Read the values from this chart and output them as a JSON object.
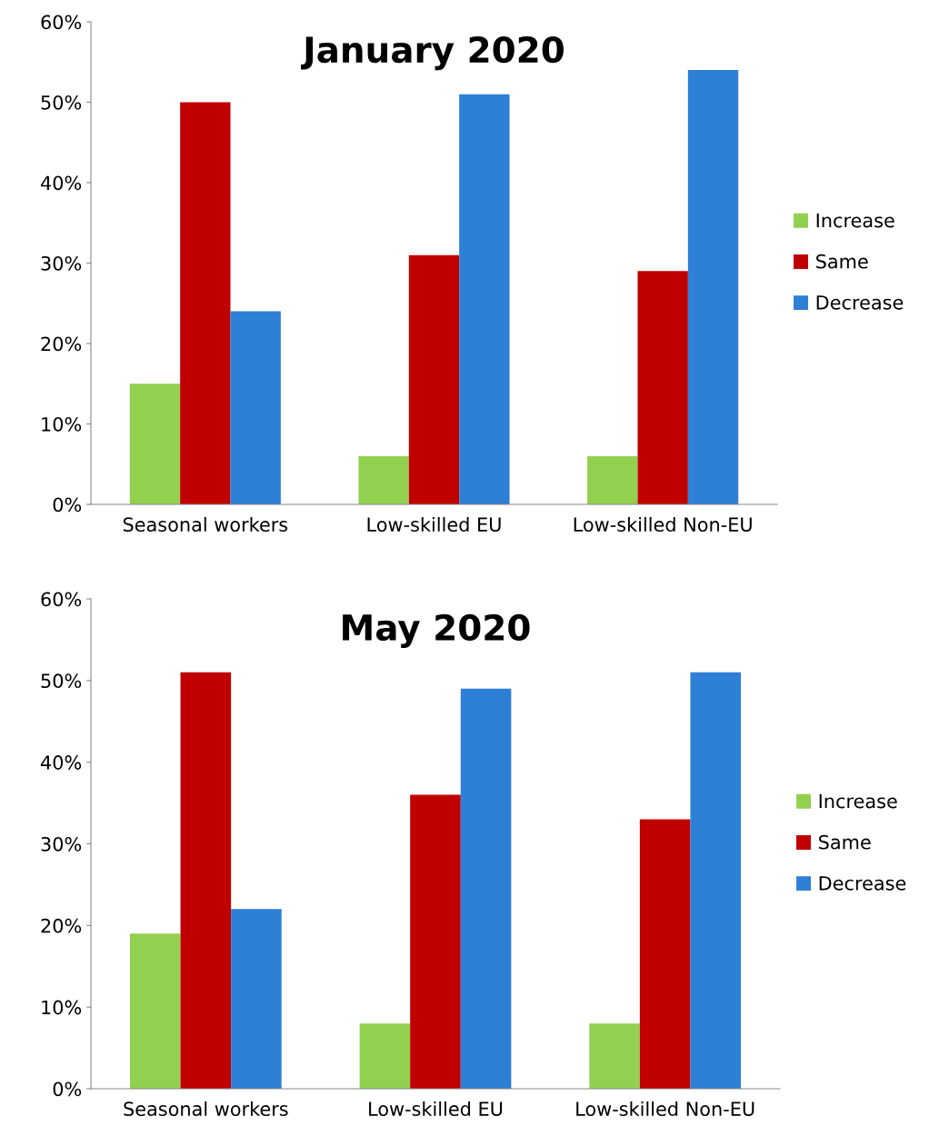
{
  "chart_data": [
    {
      "type": "bar",
      "title": "January 2020",
      "categories": [
        "Seasonal workers",
        "Low-skilled EU",
        "Low-skilled Non-EU"
      ],
      "series": [
        {
          "name": "Increase",
          "color": "#92d050",
          "values": [
            15,
            6,
            6
          ]
        },
        {
          "name": "Same",
          "color": "#c00000",
          "values": [
            50,
            31,
            29
          ]
        },
        {
          "name": "Decrease",
          "color": "#2e7fd6",
          "values": [
            24,
            51,
            54
          ]
        }
      ],
      "ylim": [
        0,
        60
      ],
      "yticks": [
        {
          "value": 0,
          "label": "0%"
        },
        {
          "value": 10,
          "label": "10%"
        },
        {
          "value": 20,
          "label": "20%"
        },
        {
          "value": 30,
          "label": "30%"
        },
        {
          "value": 40,
          "label": "40%"
        },
        {
          "value": 50,
          "label": "50%"
        },
        {
          "value": 60,
          "label": "60%"
        }
      ],
      "grid": false,
      "legend": "right"
    },
    {
      "type": "bar",
      "title": "May 2020",
      "categories": [
        "Seasonal workers",
        "Low-skilled EU",
        "Low-skilled Non-EU"
      ],
      "series": [
        {
          "name": "Increase",
          "color": "#92d050",
          "values": [
            19,
            8,
            8
          ]
        },
        {
          "name": "Same",
          "color": "#c00000",
          "values": [
            51,
            36,
            33
          ]
        },
        {
          "name": "Decrease",
          "color": "#2e7fd6",
          "values": [
            22,
            49,
            51
          ]
        }
      ],
      "ylim": [
        0,
        60
      ],
      "yticks": [
        {
          "value": 0,
          "label": "0%"
        },
        {
          "value": 10,
          "label": "10%"
        },
        {
          "value": 20,
          "label": "20%"
        },
        {
          "value": 30,
          "label": "30%"
        },
        {
          "value": 40,
          "label": "40%"
        },
        {
          "value": 50,
          "label": "50%"
        },
        {
          "value": 60,
          "label": "60%"
        }
      ],
      "grid": false,
      "legend": "right"
    }
  ]
}
